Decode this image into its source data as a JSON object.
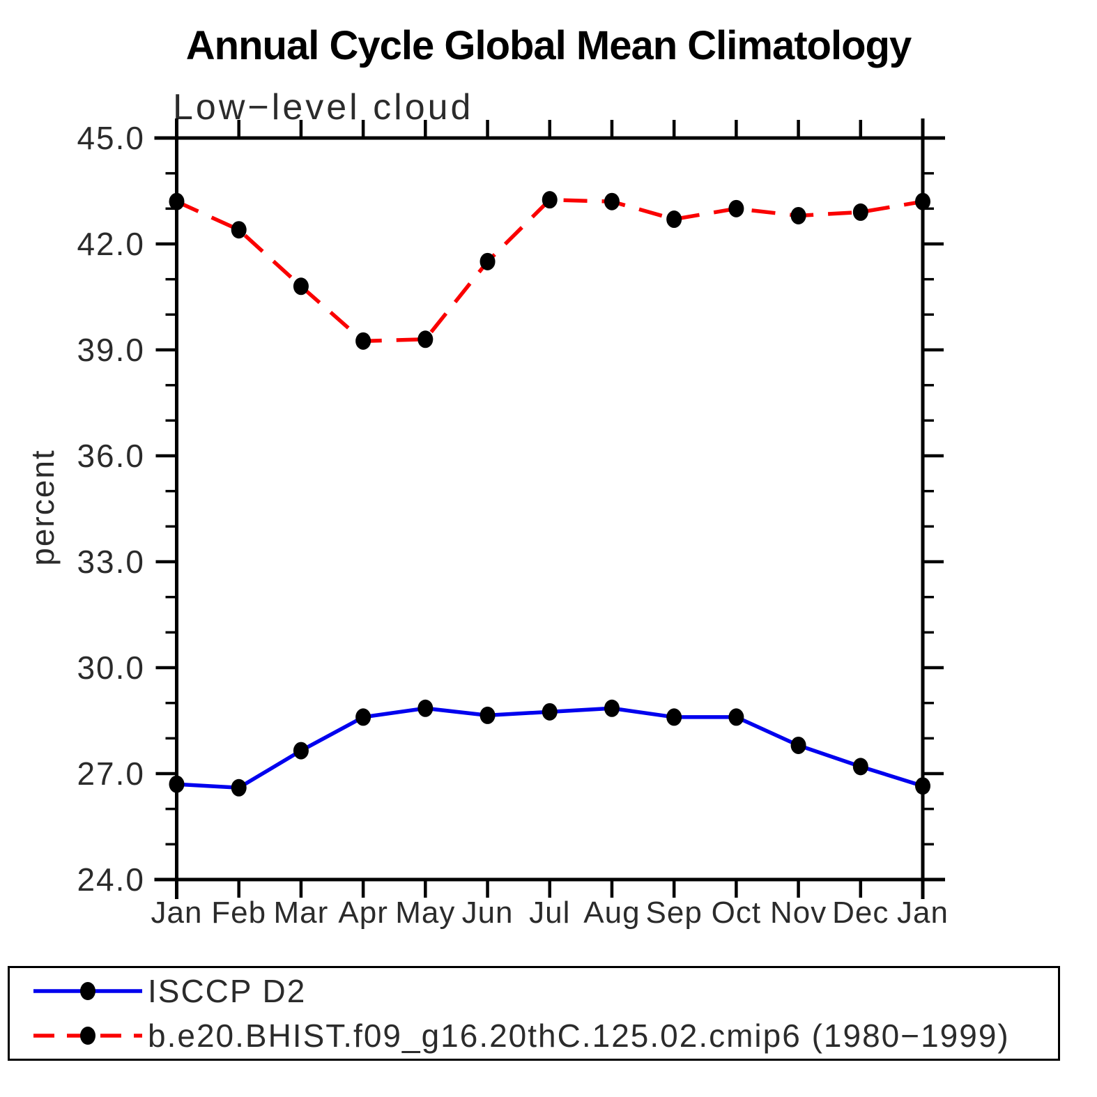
{
  "title": "Annual Cycle Global Mean Climatology",
  "subtitle": "Low−level cloud",
  "ylabel": "percent",
  "colors": {
    "obs_line": "#0000ee",
    "model_line": "#fa0000",
    "marker": "#000000",
    "axis": "#000000",
    "text": "#2b2b2b"
  },
  "legend": {
    "items": [
      {
        "label": "ISCCP D2",
        "line_style": "solid",
        "color": "#0000ee"
      },
      {
        "label": "b.e20.BHIST.f09_g16.20thC.125.02.cmip6 (1980−1999)",
        "line_style": "dashed",
        "color": "#fa0000"
      }
    ]
  },
  "chart_data": {
    "type": "line",
    "title": "Annual Cycle Global Mean Climatology",
    "subtitle": "Low−level cloud",
    "ylabel": "percent",
    "xlabel": "",
    "categories": [
      "Jan",
      "Feb",
      "Mar",
      "Apr",
      "May",
      "Jun",
      "Jul",
      "Aug",
      "Sep",
      "Oct",
      "Nov",
      "Dec",
      "Jan"
    ],
    "series": [
      {
        "name": "ISCCP D2",
        "color": "#0000ee",
        "line": "solid",
        "marker": "filled-circle",
        "values": [
          26.7,
          26.6,
          27.65,
          28.6,
          28.85,
          28.65,
          28.75,
          28.85,
          28.6,
          28.6,
          27.8,
          27.2,
          26.65
        ]
      },
      {
        "name": "b.e20.BHIST.f09_g16.20thC.125.02.cmip6 (1980−1999)",
        "color": "#fa0000",
        "line": "dashed",
        "marker": "filled-circle",
        "values": [
          43.2,
          42.4,
          40.8,
          39.25,
          39.3,
          41.5,
          43.25,
          43.2,
          42.7,
          43.0,
          42.8,
          42.9,
          43.2
        ]
      }
    ],
    "ylim": [
      24.0,
      45.0
    ],
    "ytick_major_step": 3.0,
    "ytick_minor_step": 1.0,
    "ytick_labels": [
      "45.0",
      "42.0",
      "39.0",
      "36.0",
      "33.0",
      "30.0",
      "27.0",
      "24.0"
    ],
    "grid": false,
    "legend_position": "bottom"
  }
}
